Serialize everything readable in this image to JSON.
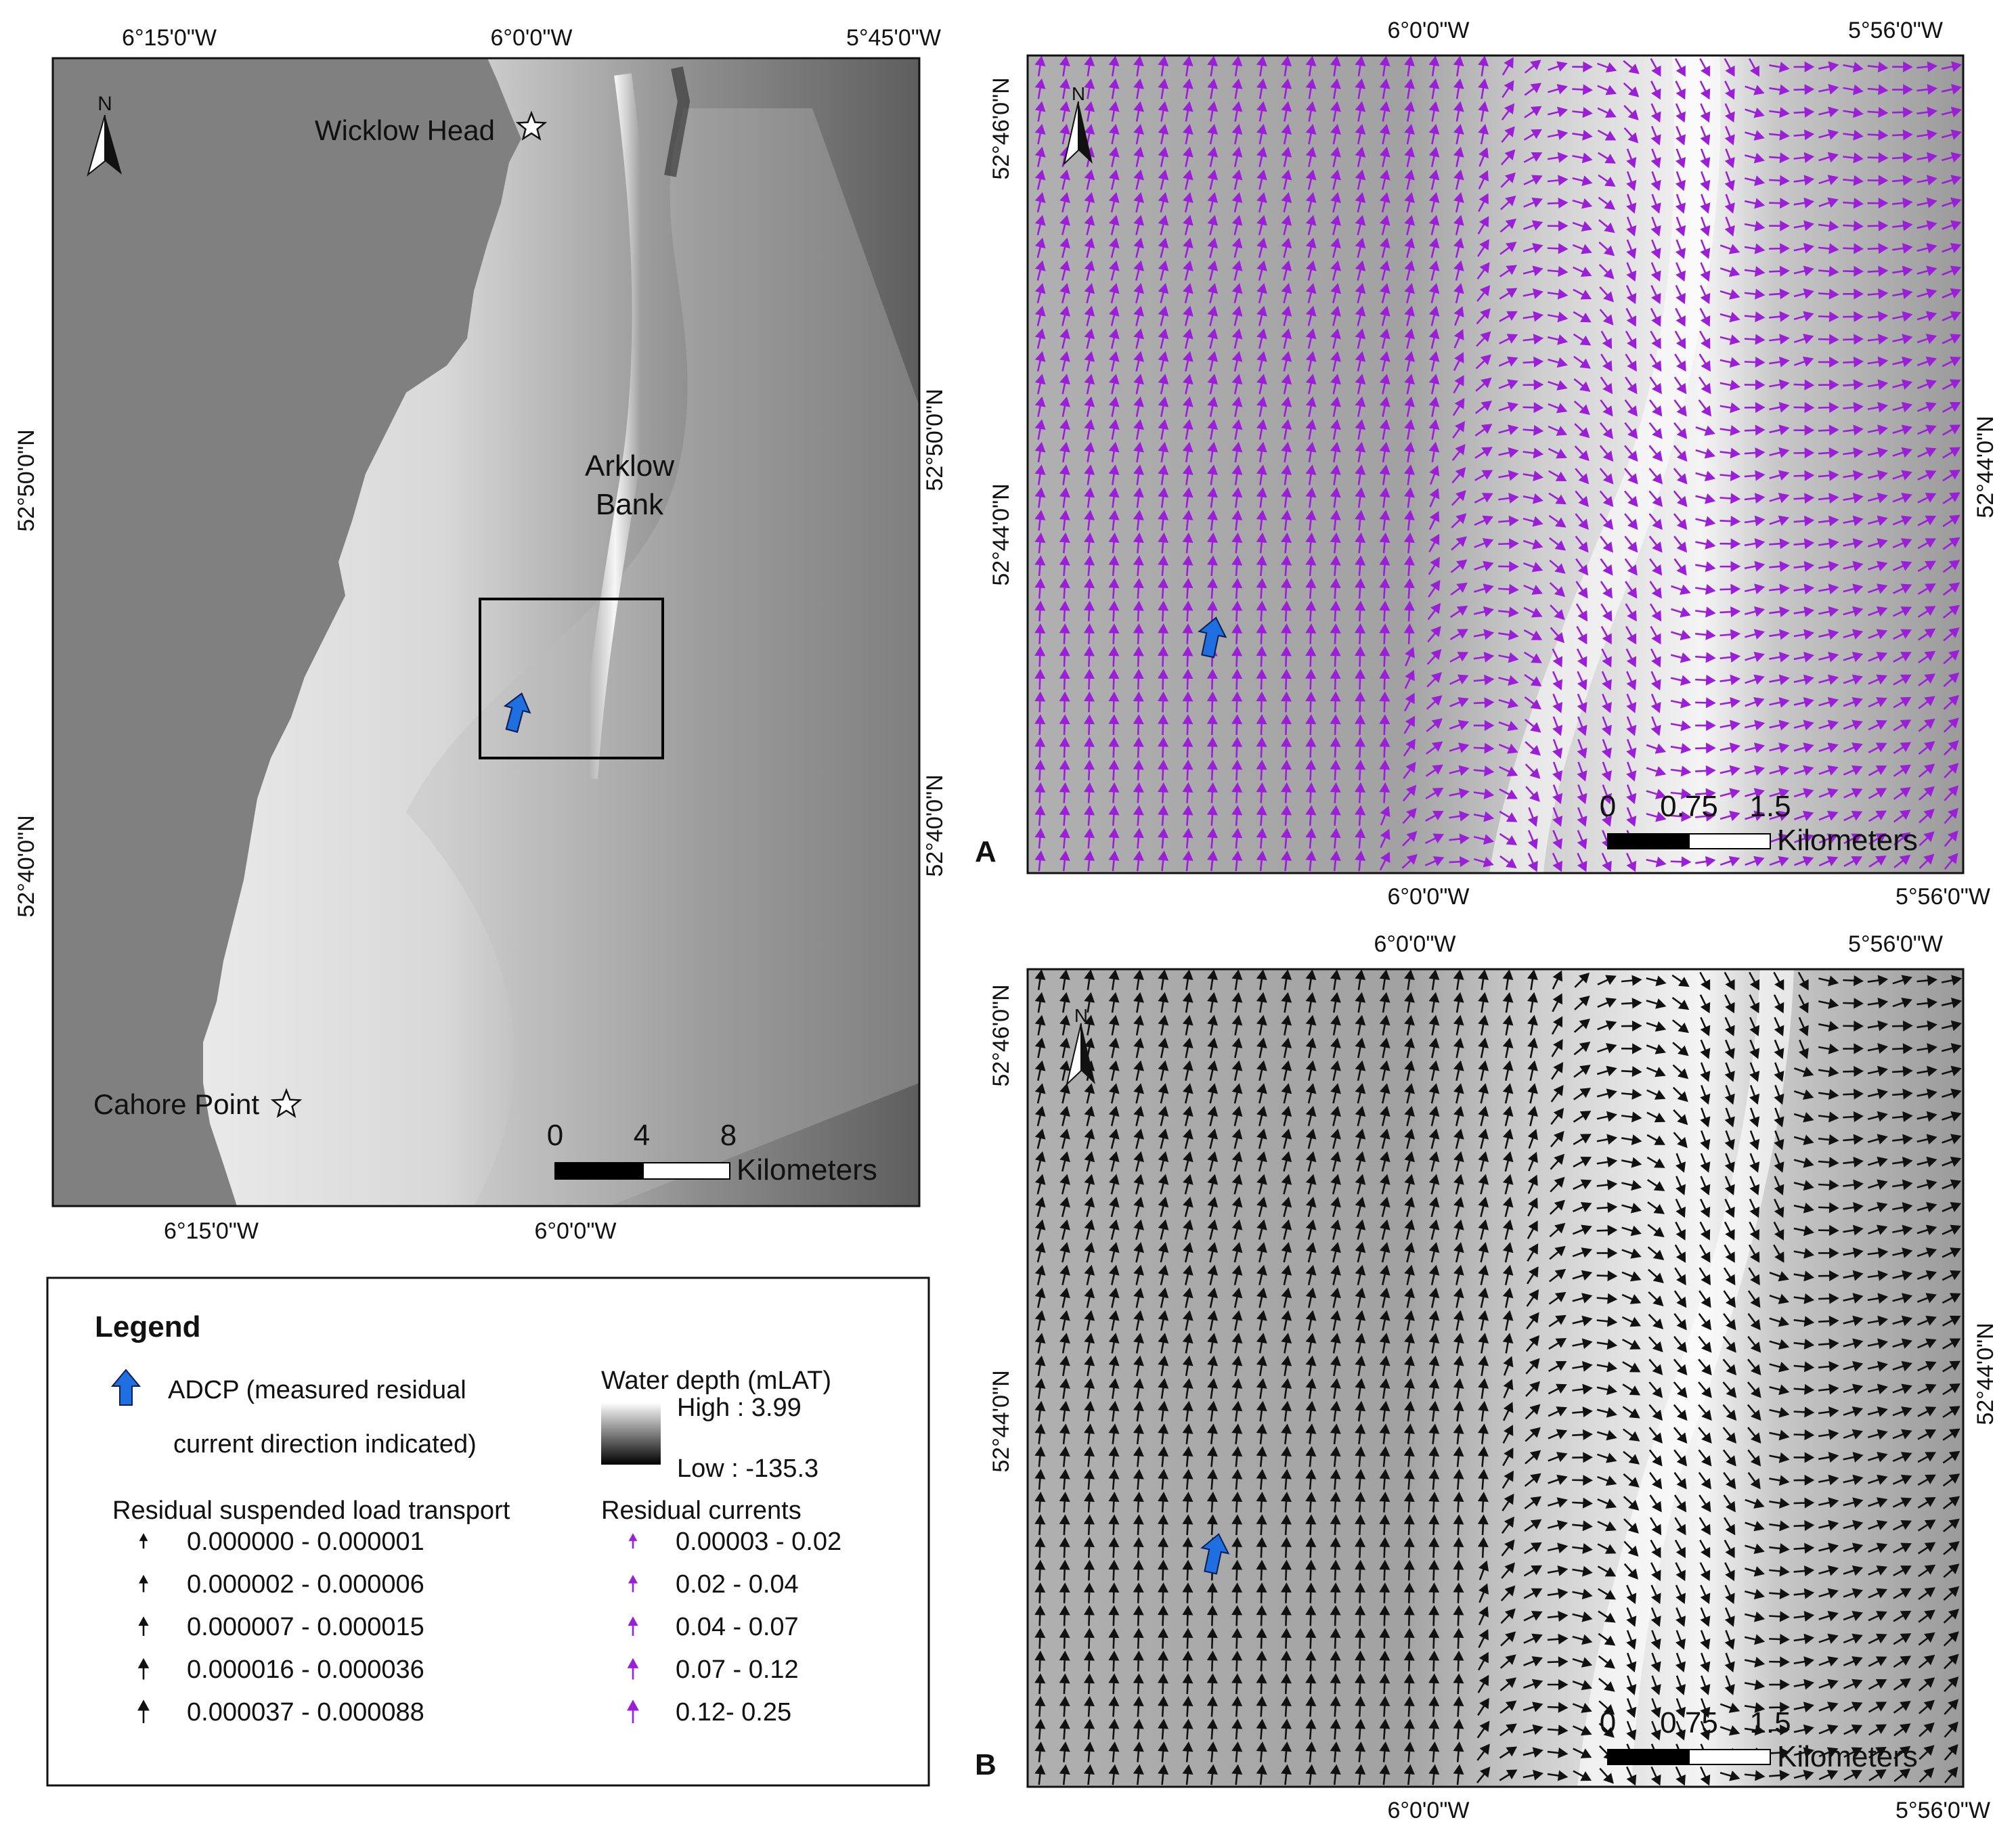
{
  "overview_map": {
    "top_ticks": [
      "6°15'0\"W",
      "6°0'0\"W",
      "5°45'0\"W"
    ],
    "bottom_ticks": [
      "6°15'0\"W",
      "6°0'0\"W"
    ],
    "left_ticks": [
      "52°50'0\"N",
      "52°40'0\"N"
    ],
    "right_ticks": [
      "52°50'0\"N",
      "52°40'0\"N"
    ],
    "places": [
      "Wicklow Head",
      "Cahore Point"
    ],
    "bank_line1": "Arklow",
    "bank_line2": "Bank",
    "north": "N",
    "scale_ticks": [
      "0",
      "4",
      "8"
    ],
    "scale_unit": "Kilometers"
  },
  "panel_a": {
    "label": "A",
    "top_ticks": [
      "6°0'0\"W",
      "5°56'0\"W"
    ],
    "bottom_ticks": [
      "6°0'0\"W",
      "5°56'0\"W"
    ],
    "left_ticks": [
      "52°46'0\"N",
      "52°44'0\"N"
    ],
    "right_ticks": [
      "52°44'0\"N"
    ],
    "north": "N",
    "scale_ticks": [
      "0",
      "0.75",
      "1.5"
    ],
    "scale_unit": "Kilometers",
    "arrow_color": "#9b1fd6"
  },
  "panel_b": {
    "label": "B",
    "top_ticks": [
      "6°0'0\"W",
      "5°56'0\"W"
    ],
    "bottom_ticks": [
      "6°0'0\"W",
      "5°56'0\"W"
    ],
    "left_ticks": [
      "52°46'0\"N",
      "52°44'0\"N"
    ],
    "right_ticks": [
      "52°44'0\"N"
    ],
    "north": "N",
    "scale_ticks": [
      "0",
      "0.75",
      "1.5"
    ],
    "scale_unit": "Kilometers",
    "arrow_color": "#111111"
  },
  "legend": {
    "title": "Legend",
    "adcp_line1": "ADCP (measured residual",
    "adcp_line2": "current direction indicated)",
    "adcp_color": "#1f6fe0",
    "depth_title": "Water depth (mLAT)",
    "depth_high": "High : 3.99",
    "depth_low": "Low : -135.3",
    "suspended_title": "Residual suspended load transport",
    "suspended_classes": [
      "0.000000 - 0.000001",
      "0.000002 - 0.000006",
      "0.000007 - 0.000015",
      "0.000016 - 0.000036",
      "0.000037 - 0.000088"
    ],
    "currents_title": "Residual currents",
    "current_classes": [
      "0.00003 - 0.02",
      "0.02 - 0.04",
      "0.04 - 0.07",
      "0.07 - 0.12",
      "0.12- 0.25"
    ]
  }
}
